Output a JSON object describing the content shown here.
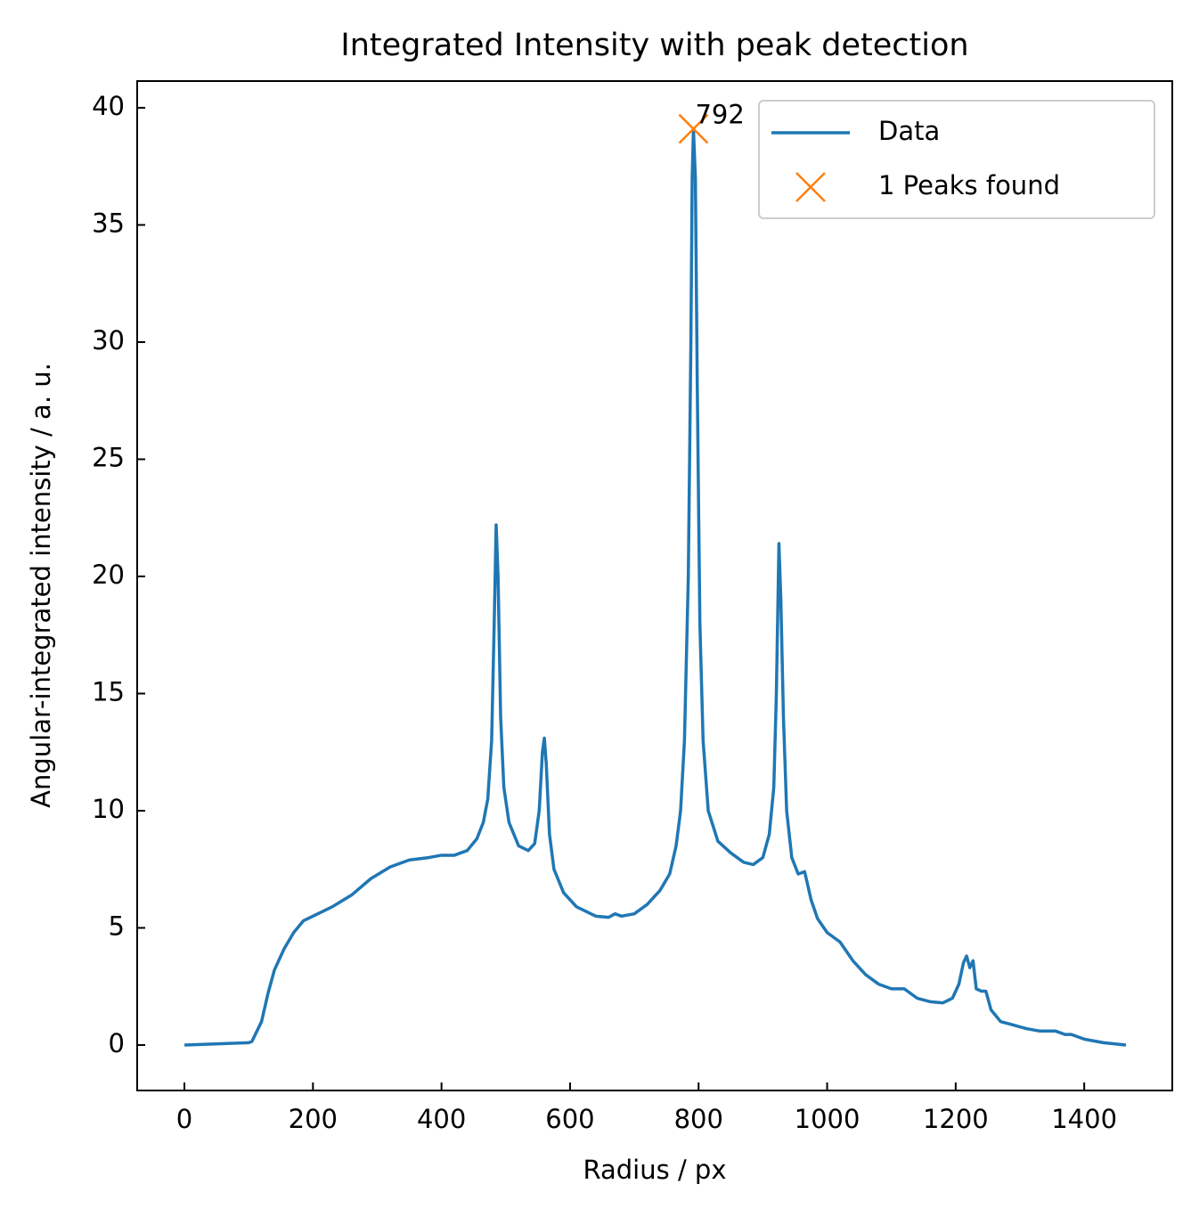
{
  "chart_data": {
    "type": "line",
    "title": "Integrated Intensity with peak detection",
    "x_label": "Radius / px",
    "y_label": "Angular-integrated intensity / a. u.",
    "xlim": [
      -73.5,
      1537
    ],
    "ylim": [
      -1.94,
      41.14
    ],
    "xticks": [
      0,
      200,
      400,
      600,
      800,
      1000,
      1200,
      1400
    ],
    "yticks": [
      0,
      5,
      10,
      15,
      20,
      25,
      30,
      35,
      40
    ],
    "legend": "upper right",
    "series": [
      {
        "name": "Data",
        "color": "#1f77b4",
        "x": [
          0,
          100,
          105,
          120,
          130,
          140,
          155,
          170,
          185,
          200,
          230,
          260,
          290,
          320,
          350,
          380,
          400,
          420,
          440,
          455,
          465,
          472,
          478,
          482,
          485,
          488,
          492,
          497,
          505,
          520,
          535,
          545,
          552,
          557,
          560,
          563,
          568,
          575,
          590,
          610,
          640,
          660,
          670,
          680,
          700,
          720,
          740,
          755,
          765,
          772,
          778,
          784,
          788,
          790,
          792,
          795,
          798,
          802,
          807,
          815,
          830,
          850,
          870,
          885,
          900,
          910,
          917,
          921,
          925,
          928,
          932,
          937,
          945,
          955,
          965,
          975,
          985,
          1000,
          1020,
          1040,
          1060,
          1080,
          1100,
          1120,
          1140,
          1160,
          1180,
          1195,
          1205,
          1212,
          1217,
          1222,
          1227,
          1232,
          1240,
          1247,
          1255,
          1270,
          1290,
          1310,
          1330,
          1355,
          1370,
          1380,
          1400,
          1430,
          1465
        ],
        "values": [
          0,
          0.1,
          0.15,
          1.0,
          2.2,
          3.2,
          4.1,
          4.8,
          5.3,
          5.5,
          5.9,
          6.4,
          7.1,
          7.6,
          7.9,
          8.0,
          8.1,
          8.1,
          8.3,
          8.8,
          9.5,
          10.5,
          13,
          18,
          22.2,
          20,
          14,
          11,
          9.5,
          8.5,
          8.3,
          8.6,
          10,
          12.5,
          13.1,
          12,
          9,
          7.5,
          6.5,
          5.9,
          5.5,
          5.45,
          5.6,
          5.5,
          5.6,
          6,
          6.6,
          7.3,
          8.5,
          10,
          13,
          20,
          30,
          37,
          39.1,
          37,
          28,
          18,
          13,
          10,
          8.7,
          8.2,
          7.8,
          7.7,
          8,
          9,
          11,
          15,
          21.4,
          19,
          14,
          10,
          8.0,
          7.3,
          7.4,
          6.2,
          5.4,
          4.8,
          4.4,
          3.6,
          3.0,
          2.6,
          2.4,
          2.4,
          2.0,
          1.85,
          1.8,
          2.0,
          2.6,
          3.5,
          3.8,
          3.3,
          3.6,
          2.4,
          2.3,
          2.3,
          1.5,
          1.0,
          0.85,
          0.7,
          0.6,
          0.6,
          0.45,
          0.45,
          0.25,
          0.1,
          0.0
        ]
      },
      {
        "name": "1 Peaks found",
        "color": "#ff7f0e",
        "marker": "x",
        "x": [
          792
        ],
        "values": [
          39.1
        ]
      }
    ],
    "annotations": [
      {
        "text": "792",
        "x": 792,
        "y": 39.1
      }
    ]
  }
}
